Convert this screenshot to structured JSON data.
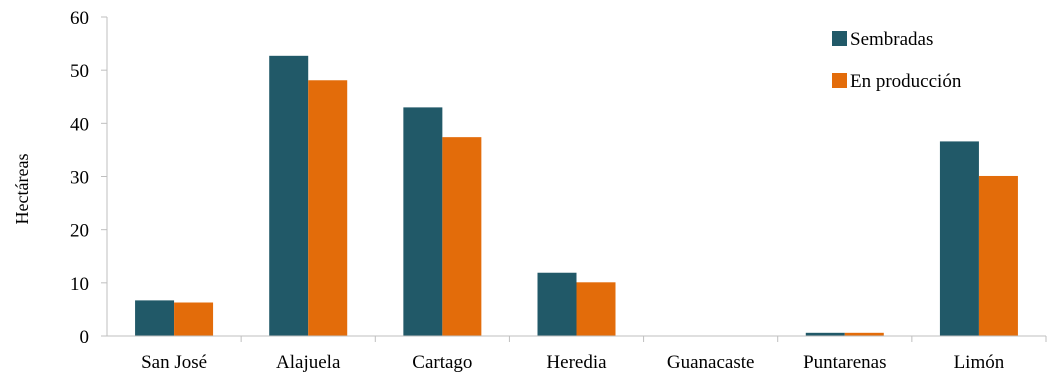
{
  "chart_data": {
    "type": "bar",
    "title": "",
    "xlabel": "",
    "ylabel": "Hectáreas",
    "ylim": [
      0,
      60
    ],
    "yticks": [
      0,
      10,
      20,
      30,
      40,
      50,
      60
    ],
    "grid": false,
    "legend_position": "top-right",
    "categories": [
      "San José",
      "Alajuela",
      "Cartago",
      "Heredia",
      "Guanacaste",
      "Puntarenas",
      "Limón"
    ],
    "series": [
      {
        "name": "Sembradas",
        "color": "#215968",
        "values": [
          6.7,
          52.7,
          43.0,
          11.9,
          0,
          0.6,
          36.6
        ]
      },
      {
        "name": "En producción",
        "color": "#E36C0A",
        "values": [
          6.3,
          48.1,
          37.4,
          10.1,
          0,
          0.6,
          30.1
        ]
      }
    ]
  }
}
